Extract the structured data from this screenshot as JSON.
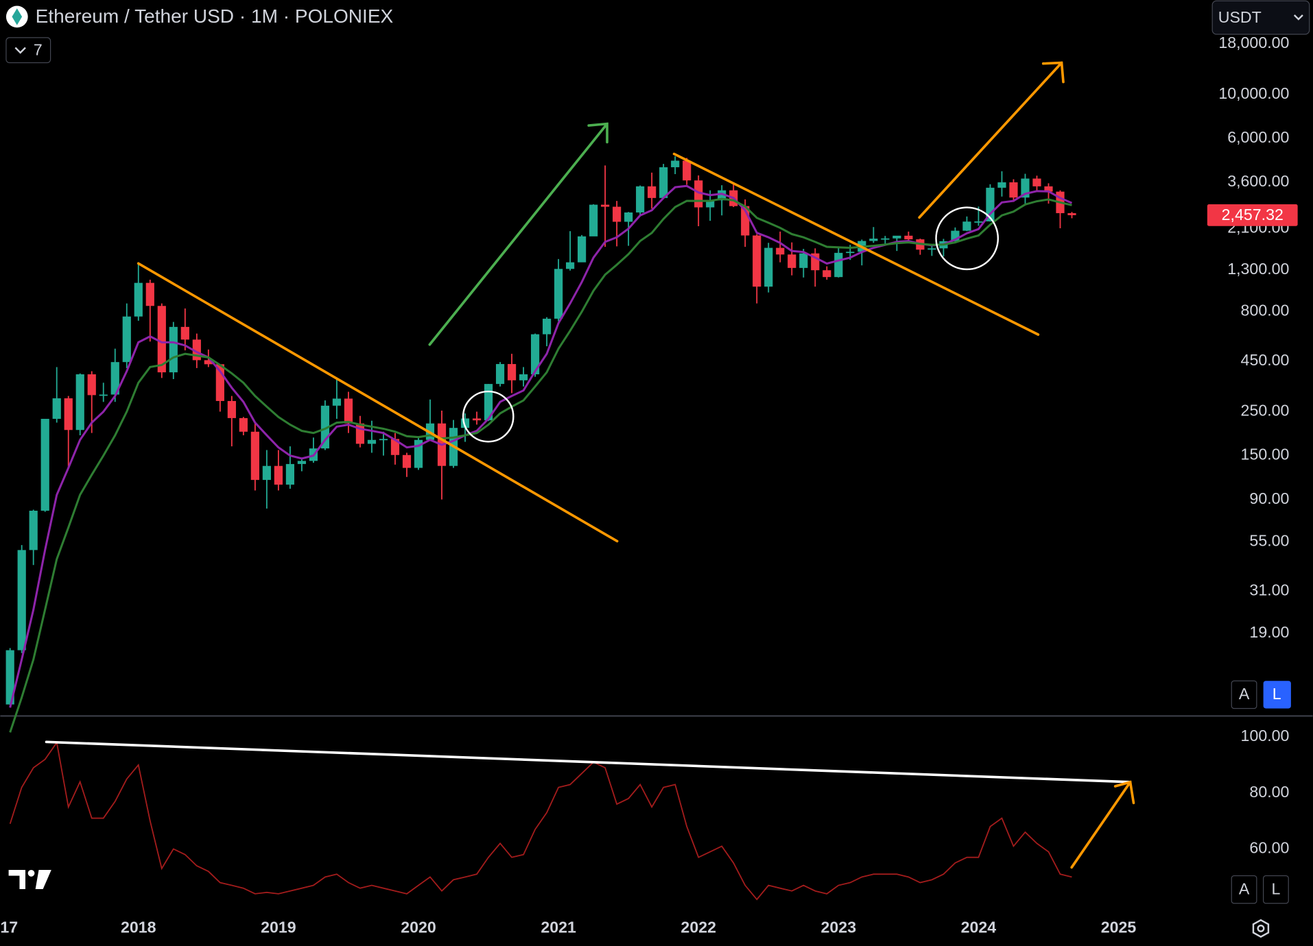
{
  "ui": {
    "indicators_toggle": "7",
    "currency": "USDT",
    "main_scale_buttons": [
      "A",
      "L"
    ],
    "lower_scale_buttons": [
      "A",
      "L"
    ]
  },
  "chart_data": [
    {
      "type": "candlestick",
      "title": "Ethereum / Tether USD · 1M · POLONIEX",
      "log_scale": true,
      "grid": false,
      "up_color": "#22ab94",
      "down_color": "#f23645",
      "xlim": [
        -0.84,
        102.46
      ],
      "ylim": [
        7.33,
        30000
      ],
      "yticks": [
        {
          "value": 18000,
          "label": "18,000.00"
        },
        {
          "value": 10000,
          "label": "10,000.00"
        },
        {
          "value": 6000,
          "label": "6,000.00"
        },
        {
          "value": 3600,
          "label": "3,600.00"
        },
        {
          "value": 2100,
          "label": "2,100.00"
        },
        {
          "value": 1300,
          "label": "1,300.00"
        },
        {
          "value": 800,
          "label": "800.00"
        },
        {
          "value": 450,
          "label": "450.00"
        },
        {
          "value": 250,
          "label": "250.00"
        },
        {
          "value": 150,
          "label": "150.00"
        },
        {
          "value": 90,
          "label": "90.00"
        },
        {
          "value": 55,
          "label": "55.00"
        },
        {
          "value": 31,
          "label": "31.00"
        },
        {
          "value": 19,
          "label": "19.00"
        }
      ],
      "open": [
        8.3,
        15.6,
        50,
        79,
        230,
        292,
        202,
        386,
        303,
        305,
        445,
        756,
        1118,
        855,
        395,
        670,
        578,
        455,
        434,
        283,
        232,
        198,
        113,
        133,
        107,
        136,
        141,
        163,
        268,
        291,
        218,
        172,
        180,
        182,
        151,
        130,
        180,
        218,
        133,
        207,
        231,
        226,
        345,
        435,
        360,
        386,
        615,
        737,
        1315,
        1420,
        1920,
        2775,
        2710,
        2275,
        2535,
        3435,
        3000,
        4290,
        4630,
        3680,
        2690,
        2920,
        3280,
        2730,
        1940,
        1070,
        1680,
        1555,
        1330,
        1575,
        1295,
        1196,
        1585,
        1605,
        1820,
        1870,
        1875,
        1935,
        1855,
        1645,
        1670,
        1815,
        2050,
        2280,
        2285,
        3380,
        3600,
        3015,
        3760,
        3435,
        3230,
        2515
      ],
      "high": [
        16,
        53,
        80,
        230,
        420,
        300,
        390,
        400,
        350,
        520,
        880,
        1420,
        1160,
        880,
        710,
        830,
        620,
        515,
        434,
        300,
        235,
        220,
        160,
        160,
        167,
        145,
        185,
        285,
        365,
        315,
        238,
        225,
        198,
        195,
        155,
        185,
        288,
        253,
        227,
        245,
        250,
        345,
        445,
        490,
        420,
        620,
        750,
        1475,
        2040,
        1950,
        2790,
        4380,
        2900,
        2550,
        3470,
        4030,
        4460,
        4870,
        4780,
        3900,
        3280,
        3480,
        3580,
        2950,
        1970,
        1780,
        2030,
        1790,
        1660,
        1670,
        1355,
        1680,
        1740,
        1850,
        2140,
        1930,
        1930,
        2030,
        1870,
        1750,
        1865,
        2130,
        2420,
        2715,
        3520,
        4095,
        3730,
        3975,
        3890,
        3560,
        3280,
        2550
      ],
      "low": [
        8.2,
        15.1,
        42,
        78,
        220,
        130,
        190,
        195,
        280,
        280,
        415,
        720,
        565,
        370,
        365,
        510,
        415,
        420,
        250,
        167,
        190,
        100,
        81,
        100,
        102,
        125,
        138,
        160,
        230,
        195,
        165,
        155,
        150,
        135,
        117,
        127,
        178,
        90,
        130,
        176,
        215,
        224,
        335,
        310,
        335,
        375,
        535,
        715,
        1290,
        1430,
        1930,
        1700,
        1710,
        1720,
        2450,
        2650,
        2970,
        3960,
        3500,
        2160,
        2300,
        2450,
        2700,
        1700,
        880,
        1000,
        1420,
        1220,
        1190,
        1070,
        1160,
        1190,
        1460,
        1370,
        1780,
        1735,
        1620,
        1830,
        1550,
        1530,
        1520,
        1770,
        2040,
        2170,
        2280,
        3050,
        2865,
        2810,
        3240,
        2810,
        2110,
        2370
      ],
      "close": [
        15.6,
        50,
        79,
        230,
        292,
        202,
        386,
        303,
        305,
        445,
        756,
        1118,
        855,
        395,
        670,
        578,
        455,
        434,
        283,
        232,
        198,
        113,
        133,
        107,
        136,
        141,
        163,
        268,
        291,
        218,
        172,
        180,
        182,
        151,
        130,
        180,
        218,
        133,
        207,
        231,
        226,
        345,
        435,
        360,
        386,
        615,
        737,
        1315,
        1420,
        1920,
        2775,
        2710,
        2275,
        2535,
        3435,
        3000,
        4290,
        4630,
        3680,
        2690,
        2920,
        3280,
        2730,
        1940,
        1070,
        1680,
        1555,
        1330,
        1575,
        1295,
        1196,
        1585,
        1605,
        1820,
        1870,
        1875,
        1935,
        1855,
        1645,
        1670,
        1815,
        2050,
        2280,
        2285,
        3380,
        3600,
        3015,
        3760,
        3435,
        3230,
        2515,
        2457.32
      ],
      "overlays": [
        {
          "color": "#8e24aa",
          "values": [
            8,
            14,
            25,
            50,
            95,
            130,
            180,
            220,
            250,
            300,
            400,
            560,
            600,
            560,
            560,
            540,
            500,
            470,
            400,
            330,
            280,
            220,
            190,
            165,
            150,
            145,
            150,
            180,
            210,
            215,
            205,
            200,
            195,
            180,
            165,
            168,
            180,
            170,
            178,
            190,
            200,
            230,
            280,
            300,
            320,
            400,
            490,
            700,
            880,
            1130,
            1500,
            1800,
            1900,
            2100,
            2450,
            2600,
            3000,
            3400,
            3450,
            3200,
            3100,
            3150,
            3000,
            2600,
            2000,
            1900,
            1780,
            1620,
            1600,
            1500,
            1400,
            1450,
            1500,
            1600,
            1680,
            1740,
            1800,
            1820,
            1760,
            1730,
            1750,
            1850,
            1990,
            2090,
            2500,
            2850,
            2900,
            3150,
            3250,
            3240,
            3000,
            2830
          ]
        },
        {
          "color": "#2e7d32",
          "values": [
            6,
            9,
            14,
            25,
            45,
            65,
            95,
            120,
            150,
            190,
            250,
            350,
            420,
            430,
            470,
            490,
            480,
            470,
            430,
            390,
            350,
            300,
            265,
            235,
            215,
            200,
            195,
            205,
            220,
            222,
            215,
            210,
            205,
            198,
            188,
            186,
            190,
            183,
            185,
            190,
            195,
            215,
            245,
            265,
            285,
            335,
            395,
            520,
            640,
            800,
            1020,
            1230,
            1380,
            1560,
            1820,
            2000,
            2350,
            2700,
            2900,
            2900,
            2900,
            2970,
            2920,
            2720,
            2380,
            2250,
            2120,
            1970,
            1900,
            1800,
            1700,
            1690,
            1680,
            1700,
            1720,
            1745,
            1775,
            1790,
            1760,
            1740,
            1745,
            1790,
            1870,
            1940,
            2200,
            2450,
            2560,
            2780,
            2890,
            2950,
            2850,
            2760
          ]
        }
      ],
      "last_price": {
        "value": 2457.32,
        "label": "2,457.32"
      }
    },
    {
      "type": "line",
      "color": "#a31c1c",
      "grid": false,
      "xlim": [
        -0.84,
        102.46
      ],
      "ylim": [
        37,
        107.2
      ],
      "yticks": [
        {
          "value": 100,
          "label": "100.00"
        },
        {
          "value": 80,
          "label": "80.00"
        },
        {
          "value": 60,
          "label": "60.00"
        }
      ],
      "xticks": [
        {
          "value": -1,
          "label": "17"
        },
        {
          "value": 11,
          "label": "2018"
        },
        {
          "value": 23,
          "label": "2019"
        },
        {
          "value": 35,
          "label": "2020"
        },
        {
          "value": 47,
          "label": "2021"
        },
        {
          "value": 59,
          "label": "2022"
        },
        {
          "value": 71,
          "label": "2023"
        },
        {
          "value": 83,
          "label": "2024"
        },
        {
          "value": 95,
          "label": "2025"
        }
      ],
      "values": [
        69,
        82,
        89,
        92,
        98,
        75,
        84,
        71,
        71,
        77,
        85,
        90,
        70,
        53,
        60,
        58,
        54,
        52,
        48,
        47,
        46,
        44,
        44.5,
        44,
        45,
        46,
        47,
        50,
        51,
        48,
        46,
        47,
        46,
        45,
        44,
        47,
        50,
        45,
        49,
        50,
        51,
        57,
        62,
        57,
        58,
        67,
        73,
        82,
        83,
        87,
        91,
        89,
        76,
        78,
        83,
        75,
        82,
        83,
        68,
        57,
        59,
        61,
        55,
        47,
        42,
        47,
        46,
        45,
        47,
        45,
        44,
        47,
        48,
        50,
        51,
        51,
        51,
        50,
        48,
        49,
        51,
        55,
        57,
        57,
        68,
        71,
        61,
        66,
        62,
        59,
        51,
        50
      ]
    }
  ]
}
